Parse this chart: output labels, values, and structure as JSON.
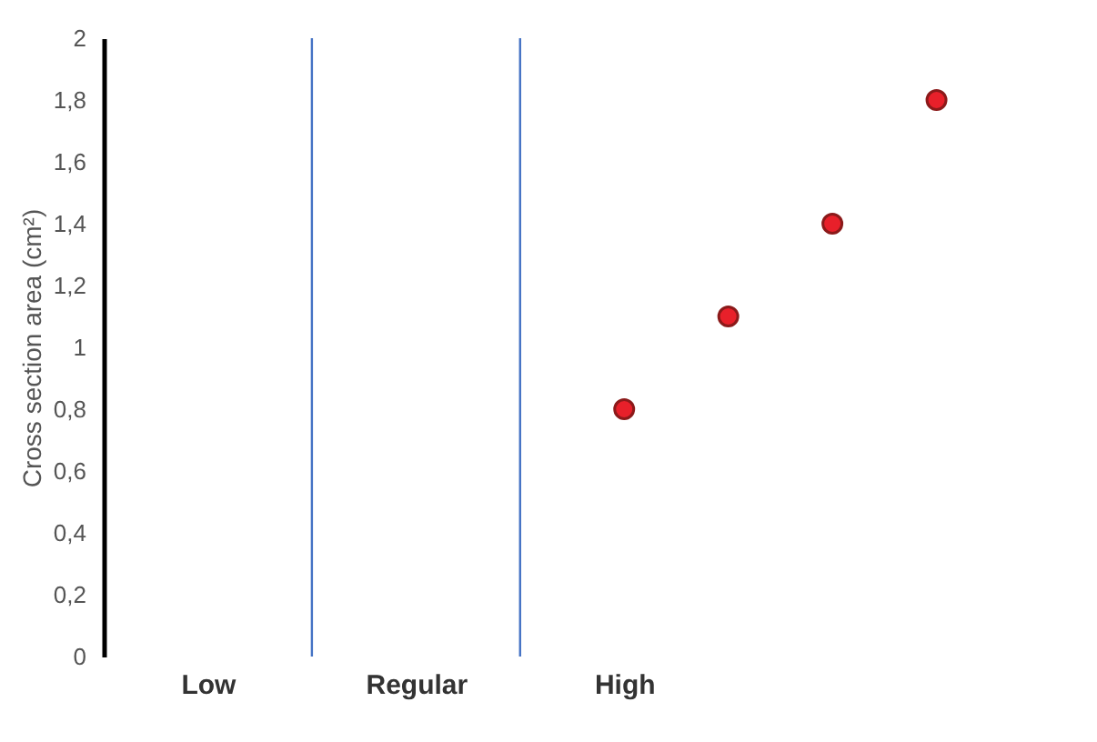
{
  "chart_data": {
    "type": "scatter",
    "ylabel": "Cross section area (cm²)",
    "categories": [
      "Low",
      null,
      "Regular",
      null,
      "High",
      null,
      null,
      null
    ],
    "series": [
      {
        "color": "#e8202a",
        "values": [
          null,
          null,
          null,
          null,
          0.8,
          1.1,
          1.4,
          1.8
        ]
      }
    ],
    "ylim": [
      0,
      2
    ],
    "yticks": [
      0,
      {
        "value": 0.2,
        "label": "0,2"
      },
      {
        "value": 0.4,
        "label": "0,4"
      },
      {
        "value": 0.6,
        "label": "0,6"
      },
      {
        "value": 0.8,
        "label": "0,8"
      },
      1,
      {
        "value": 1.2,
        "label": "1,2"
      },
      {
        "value": 1.4,
        "label": "1,4"
      },
      {
        "value": 1.6,
        "label": "1,6"
      },
      {
        "value": 1.8,
        "label": "1,8"
      },
      2
    ],
    "grid": "x",
    "marker": "circle"
  }
}
